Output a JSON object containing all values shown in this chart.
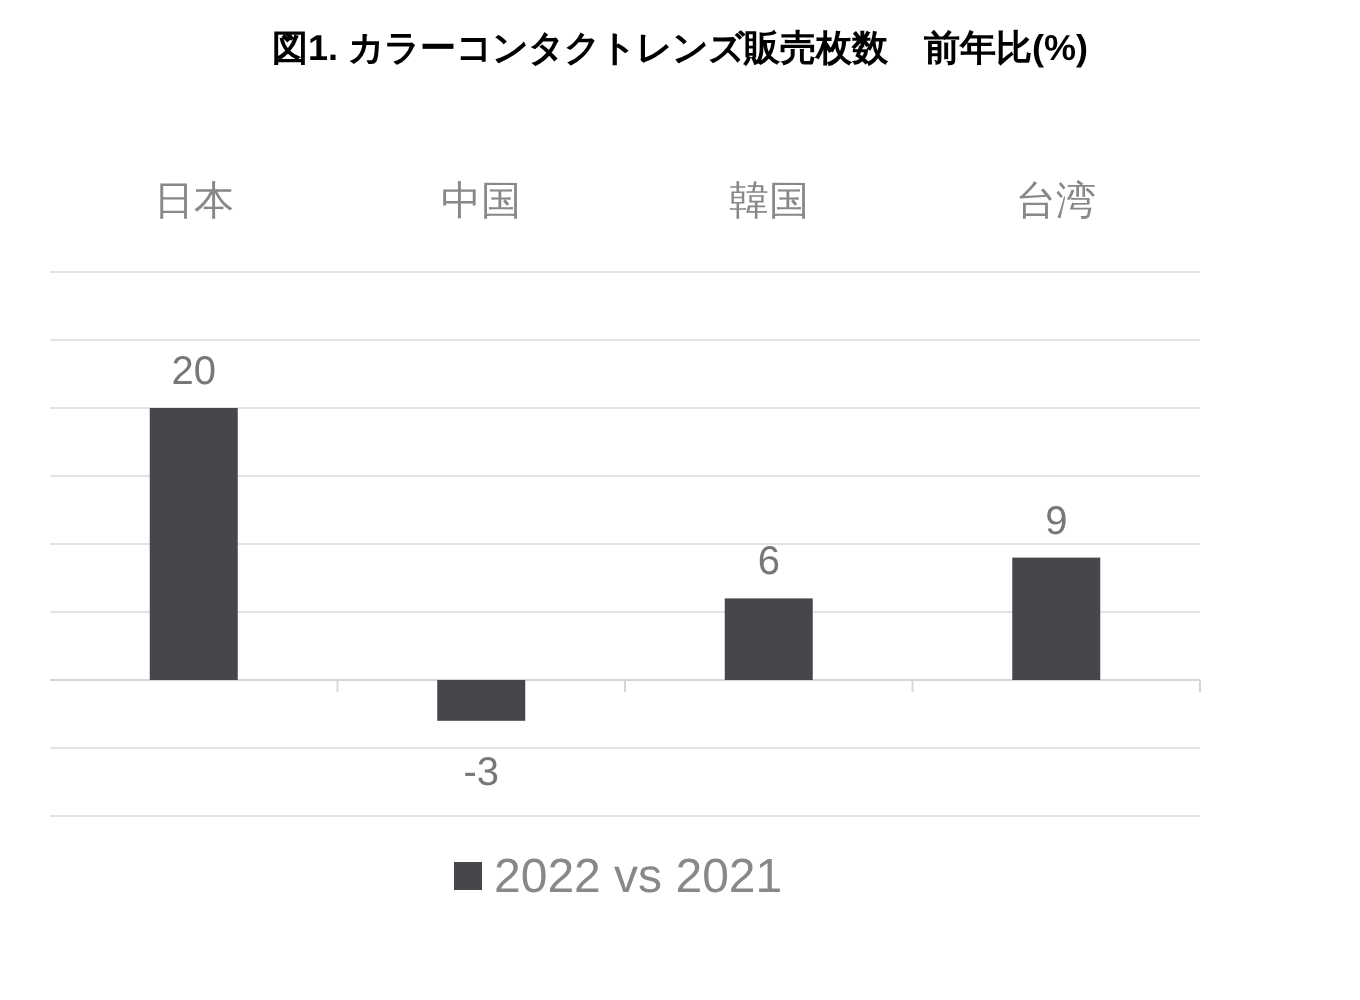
{
  "chart_data": {
    "type": "bar",
    "title": "図1. カラーコンタクトレンズ販売枚数　前年比(%)",
    "categories": [
      "日本",
      "中国",
      "韓国",
      "台湾"
    ],
    "series": [
      {
        "name": "2022 vs 2021",
        "color": "#46474a",
        "values": [
          20,
          -3,
          6,
          9
        ]
      }
    ],
    "ylim": [
      -10,
      30
    ],
    "yticks": [
      {
        "value": -10,
        "label": null
      },
      {
        "value": -5,
        "label": null
      },
      {
        "value": 0,
        "label": null
      },
      {
        "value": 5,
        "label": null
      },
      {
        "value": 10,
        "label": null
      },
      {
        "value": 15,
        "label": null
      },
      {
        "value": 20,
        "label": null
      },
      {
        "value": 25,
        "label": null
      },
      {
        "value": 30,
        "label": null
      }
    ],
    "grid": "y",
    "legend": "bottom",
    "data_labels": true,
    "tick_labels": "x"
  }
}
